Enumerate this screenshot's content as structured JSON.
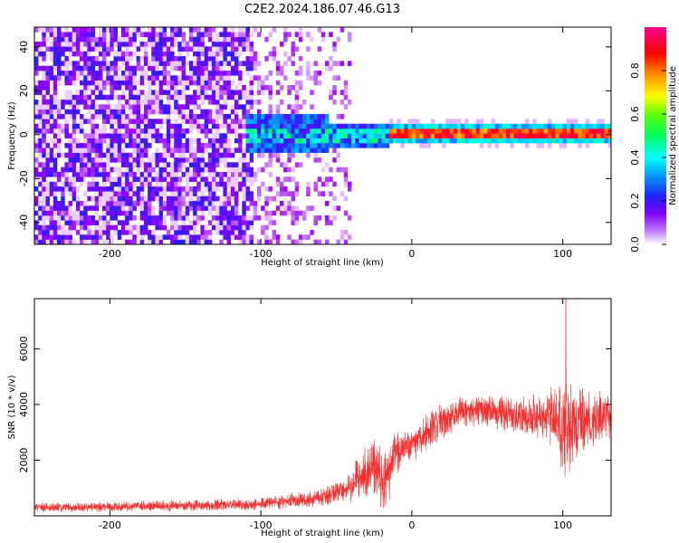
{
  "title": "C2E2.2024.186.07.46.G13",
  "chart_data": [
    {
      "type": "heatmap",
      "xlabel": "Height of straight line (km)",
      "ylabel": "Frequency (Hz)",
      "xlim": [
        -250,
        132
      ],
      "ylim": [
        -50,
        49
      ],
      "x_ticks": [
        -200,
        -100,
        0,
        100
      ],
      "y_ticks": [
        -40,
        -20,
        0,
        20,
        40
      ],
      "colorbar": {
        "label": "Normalized spectral amplitude",
        "range": [
          0,
          1
        ],
        "ticks": [
          0.0,
          0.2,
          0.4,
          0.6,
          0.8
        ],
        "colors": [
          "#ffffff",
          "#9b00ff",
          "#2020ff",
          "#00bfff",
          "#00ffff",
          "#00ff40",
          "#b0ff00",
          "#ffff00",
          "#ff8000",
          "#ff0000",
          "#ff0080"
        ]
      },
      "description_regions": [
        {
          "x_range": [
            -250,
            -105
          ],
          "freq_range": [
            -50,
            49
          ],
          "amplitude": 0.1
        },
        {
          "x_range": [
            -105,
            -40
          ],
          "freq_range": [
            -50,
            49
          ],
          "amplitude": 0.04
        },
        {
          "x_range": [
            -110,
            -15
          ],
          "freq_range": [
            -10,
            10
          ],
          "amplitude": 0.3
        },
        {
          "x_range": [
            -15,
            132
          ],
          "freq_range": [
            -2,
            2
          ],
          "amplitude": 0.95
        }
      ]
    },
    {
      "type": "line",
      "xlabel": "Height of straight line (km)",
      "ylabel": "SNR (10 * v/v)",
      "xlim": [
        -250,
        132
      ],
      "ylim": [
        0,
        7800
      ],
      "x_ticks": [
        -200,
        -100,
        0,
        100
      ],
      "y_ticks": [
        2000,
        4000,
        6000
      ],
      "color": "#f03030",
      "envelope": {
        "x": [
          -250,
          -200,
          -150,
          -110,
          -80,
          -60,
          -45,
          -35,
          -25,
          -18,
          -12,
          -5,
          0,
          10,
          20,
          30,
          45,
          60,
          75,
          90,
          100,
          105,
          112,
          120,
          132
        ],
        "mean": [
          300,
          330,
          360,
          400,
          520,
          680,
          900,
          1400,
          1800,
          1100,
          2000,
          2500,
          2600,
          3000,
          3400,
          3700,
          3800,
          3700,
          3600,
          3600,
          3200,
          3000,
          3400,
          3500,
          3600
        ],
        "spread": [
          180,
          200,
          220,
          250,
          300,
          350,
          500,
          900,
          1100,
          1300,
          1000,
          900,
          800,
          800,
          700,
          600,
          600,
          700,
          800,
          1000,
          2200,
          1800,
          1400,
          1100,
          900
        ]
      },
      "peak": {
        "x": 102,
        "y": 7800
      }
    }
  ]
}
